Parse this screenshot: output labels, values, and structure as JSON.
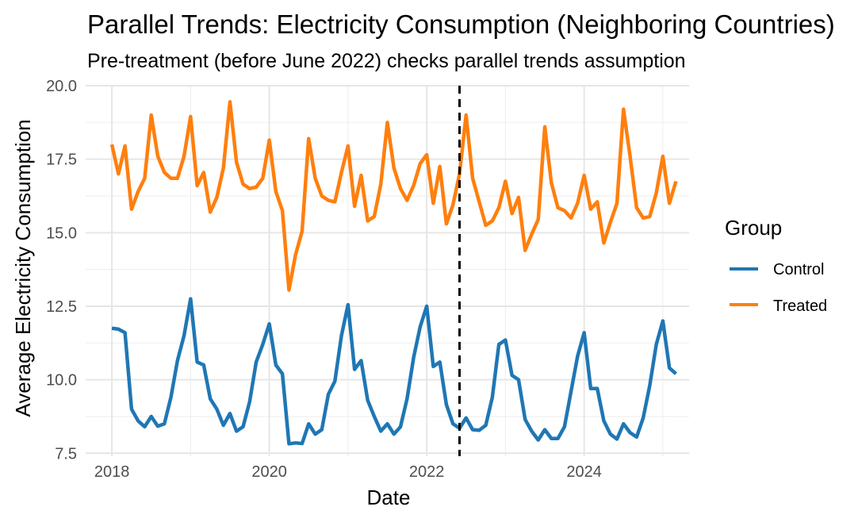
{
  "chart_data": {
    "type": "line",
    "title": "Parallel Trends: Electricity Consumption (Neighboring Countries)",
    "subtitle": "Pre-treatment (before June 2022) checks parallel trends assumption",
    "xlabel": "Date",
    "ylabel": "Average Electricity Consumption",
    "x_ticks": [
      "2018",
      "2020",
      "2022",
      "2024"
    ],
    "y_ticks": [
      "7.5",
      "10.0",
      "12.5",
      "15.0",
      "17.5",
      "20.0"
    ],
    "xlim": [
      "2017-09",
      "2025-05"
    ],
    "ylim": [
      7.4,
      20.0
    ],
    "grid": true,
    "treatment_line": {
      "x": "2022-06",
      "style": "dashed",
      "color": "#000000"
    },
    "legend": {
      "title": "Group",
      "position": "right"
    },
    "x": [
      "2018-01",
      "2018-02",
      "2018-03",
      "2018-04",
      "2018-05",
      "2018-06",
      "2018-07",
      "2018-08",
      "2018-09",
      "2018-10",
      "2018-11",
      "2018-12",
      "2019-01",
      "2019-02",
      "2019-03",
      "2019-04",
      "2019-05",
      "2019-06",
      "2019-07",
      "2019-08",
      "2019-09",
      "2019-10",
      "2019-11",
      "2019-12",
      "2020-01",
      "2020-02",
      "2020-03",
      "2020-04",
      "2020-05",
      "2020-06",
      "2020-07",
      "2020-08",
      "2020-09",
      "2020-10",
      "2020-11",
      "2020-12",
      "2021-01",
      "2021-02",
      "2021-03",
      "2021-04",
      "2021-05",
      "2021-06",
      "2021-07",
      "2021-08",
      "2021-09",
      "2021-10",
      "2021-11",
      "2021-12",
      "2022-01",
      "2022-02",
      "2022-03",
      "2022-04",
      "2022-05",
      "2022-06",
      "2022-07",
      "2022-08",
      "2022-09",
      "2022-10",
      "2022-11",
      "2022-12",
      "2023-01",
      "2023-02",
      "2023-03",
      "2023-04",
      "2023-05",
      "2023-06",
      "2023-07",
      "2023-08",
      "2023-09",
      "2023-10",
      "2023-11",
      "2023-12",
      "2024-01",
      "2024-02",
      "2024-03",
      "2024-04",
      "2024-05",
      "2024-06",
      "2024-07",
      "2024-08",
      "2024-09",
      "2024-10",
      "2024-11",
      "2024-12",
      "2025-01",
      "2025-02",
      "2025-03"
    ],
    "series": [
      {
        "name": "Control",
        "color": "#1f77b4",
        "values": [
          11.75,
          11.72,
          11.6,
          9.0,
          8.6,
          8.4,
          8.75,
          8.42,
          8.5,
          9.4,
          10.65,
          11.5,
          12.75,
          10.6,
          10.5,
          9.35,
          9.0,
          8.45,
          8.85,
          8.25,
          8.4,
          9.25,
          10.6,
          11.2,
          11.9,
          10.5,
          10.2,
          7.82,
          7.85,
          7.83,
          8.5,
          8.15,
          8.3,
          9.5,
          9.95,
          11.5,
          12.55,
          10.35,
          10.65,
          9.3,
          8.75,
          8.25,
          8.5,
          8.15,
          8.4,
          9.35,
          10.75,
          11.8,
          12.5,
          10.45,
          10.6,
          9.15,
          8.5,
          8.35,
          8.7,
          8.3,
          8.28,
          8.45,
          9.4,
          11.2,
          11.35,
          10.15,
          10.0,
          8.65,
          8.25,
          7.95,
          8.3,
          8.0,
          8.0,
          8.4,
          9.6,
          10.8,
          11.6,
          9.7,
          9.7,
          8.6,
          8.15,
          7.98,
          8.5,
          8.2,
          8.05,
          8.7,
          9.8,
          11.2,
          12.0,
          10.4,
          10.2
        ]
      },
      {
        "name": "Treated",
        "color": "#ff7f0e",
        "values": [
          18.0,
          17.0,
          17.95,
          15.8,
          16.4,
          16.85,
          19.0,
          17.6,
          17.05,
          16.85,
          16.85,
          17.6,
          18.95,
          16.6,
          17.05,
          15.7,
          16.2,
          17.2,
          19.45,
          17.4,
          16.65,
          16.5,
          16.55,
          16.85,
          18.15,
          16.4,
          15.75,
          13.05,
          14.25,
          15.05,
          18.2,
          16.85,
          16.25,
          16.1,
          16.05,
          17.05,
          17.95,
          15.9,
          16.95,
          15.4,
          15.55,
          16.65,
          18.75,
          17.2,
          16.5,
          16.1,
          16.6,
          17.35,
          17.65,
          16.0,
          17.25,
          15.3,
          15.95,
          17.0,
          19.0,
          16.85,
          16.05,
          15.25,
          15.4,
          15.85,
          16.75,
          15.65,
          16.2,
          14.4,
          14.95,
          15.45,
          18.6,
          16.7,
          15.85,
          15.75,
          15.5,
          16.0,
          16.95,
          15.8,
          16.05,
          14.65,
          15.35,
          16.0,
          19.2,
          17.6,
          15.85,
          15.5,
          15.55,
          16.35,
          17.6,
          16.0,
          16.75
        ]
      }
    ]
  }
}
